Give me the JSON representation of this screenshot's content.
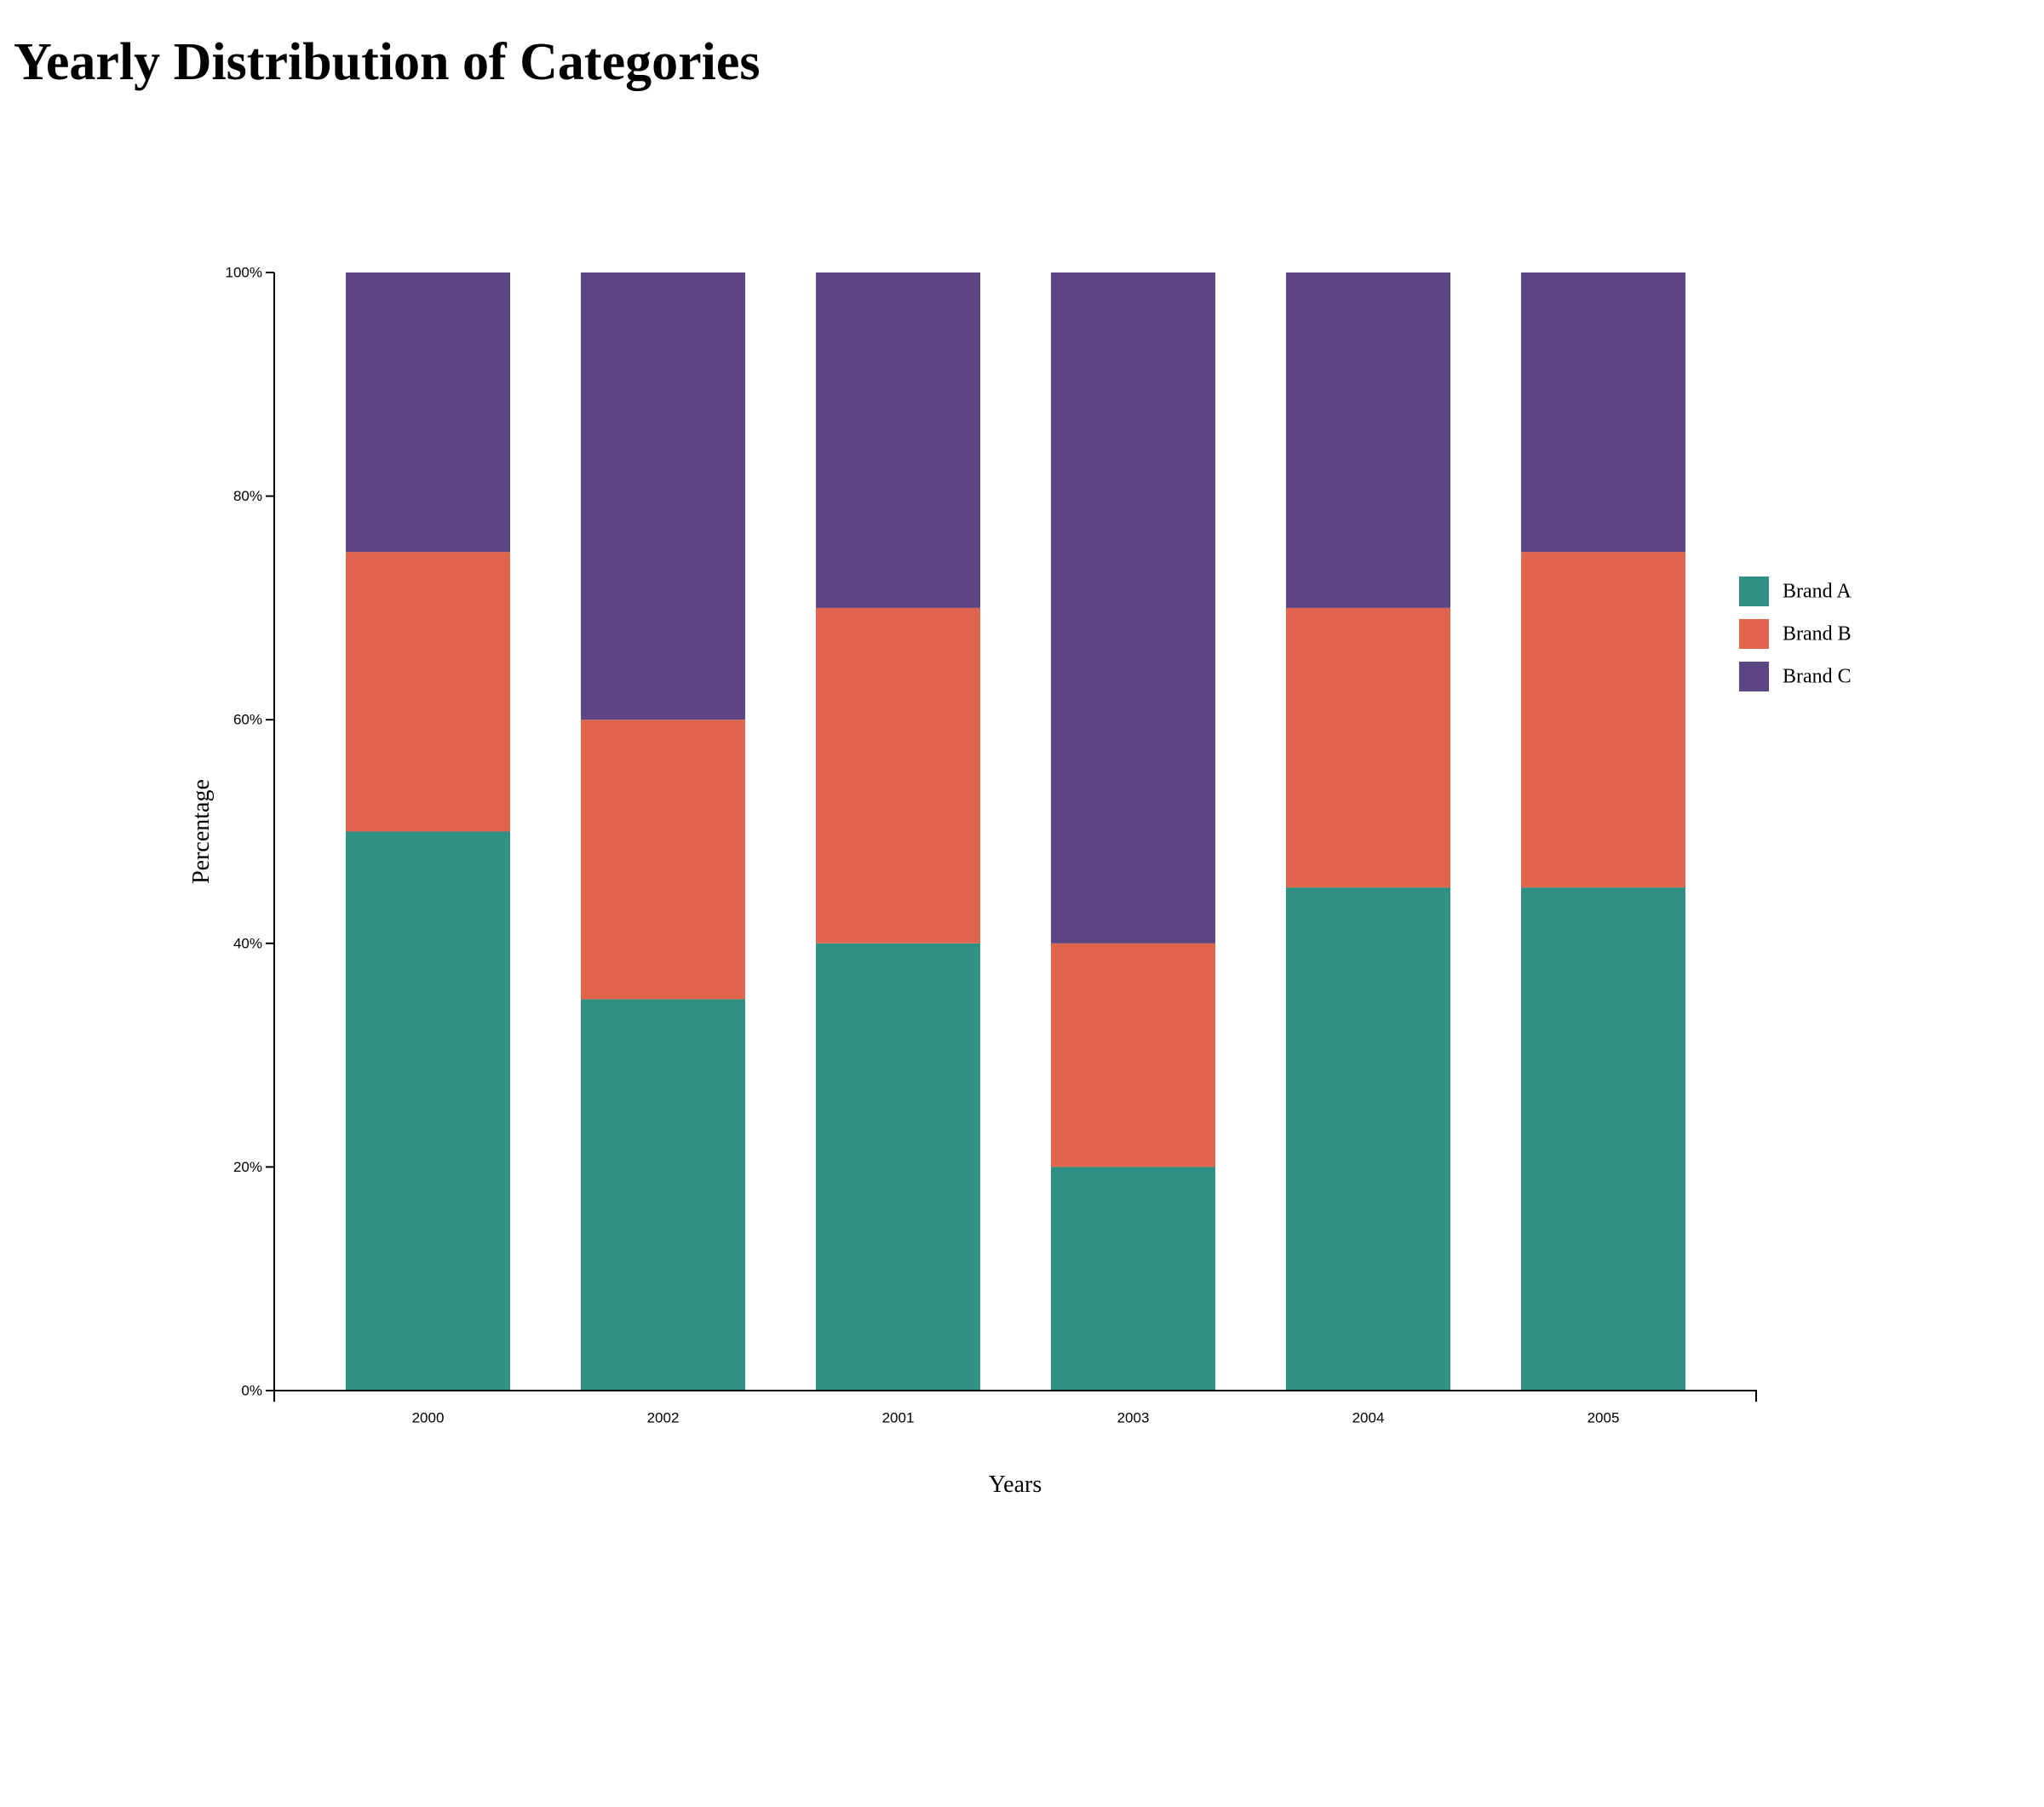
{
  "chart_data": {
    "type": "bar",
    "stacked": true,
    "title": "Yearly Distribution of Categories",
    "xlabel": "Years",
    "ylabel": "Percentage",
    "categories": [
      "2000",
      "2002",
      "2001",
      "2003",
      "2004",
      "2005"
    ],
    "series": [
      {
        "name": "Brand A",
        "color": "#2e9183",
        "values": [
          50,
          35,
          40,
          20,
          45,
          45
        ]
      },
      {
        "name": "Brand B",
        "color": "#e1654c",
        "values": [
          25,
          25,
          30,
          20,
          25,
          30
        ]
      },
      {
        "name": "Brand C",
        "color": "#5e4583",
        "values": [
          25,
          40,
          30,
          60,
          30,
          25
        ]
      }
    ],
    "ylim": [
      0,
      100
    ],
    "yticks": [
      "0%",
      "20%",
      "40%",
      "60%",
      "80%",
      "100%"
    ],
    "ytick_values": [
      0,
      20,
      40,
      60,
      80,
      100
    ],
    "grid": false,
    "legend_position": "right"
  }
}
